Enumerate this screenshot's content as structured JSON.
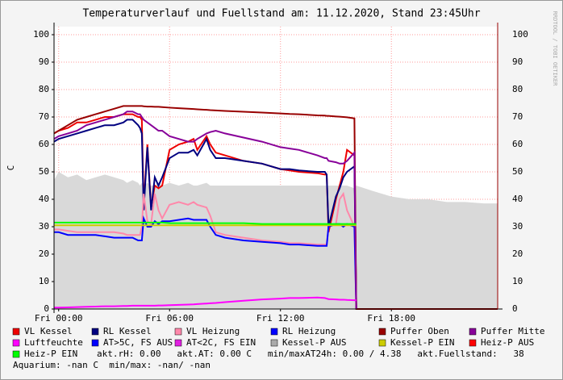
{
  "chart_data": {
    "type": "line",
    "title": "Temperaturverlauf und Fuellstand am: 11.12.2020, Stand 23:45Uhr",
    "y_label": "C",
    "watermark": "RRDTOOL / TOBI OETIKER",
    "x": [
      -0.25,
      0,
      0.5,
      1,
      1.5,
      2,
      2.5,
      3,
      3.5,
      3.7,
      4,
      4.3,
      4.4,
      4.5,
      4.6,
      4.8,
      5,
      5.2,
      5.4,
      5.6,
      6,
      6.5,
      7,
      7.3,
      7.5,
      8,
      8.2,
      8.5,
      9,
      10,
      11,
      12,
      12.5,
      13,
      14,
      14.4,
      14.5,
      14.6,
      15,
      15.2,
      15.4,
      15.6,
      16,
      16.1,
      17,
      18,
      19,
      20,
      21,
      22,
      23,
      23.75
    ],
    "xlim": [
      -0.25,
      23.75
    ],
    "xticks": [
      {
        "value": 0,
        "label": "Fri 00:00"
      },
      {
        "value": 6,
        "label": "Fri 06:00"
      },
      {
        "value": 12,
        "label": "Fri 12:00"
      },
      {
        "value": 18,
        "label": "Fri 18:00"
      }
    ],
    "ylim": [
      0,
      100
    ],
    "yticks": [
      0,
      10,
      20,
      30,
      40,
      50,
      60,
      70,
      80,
      90,
      100
    ],
    "grid": true,
    "series": [
      {
        "name": "Kessel-P AUS",
        "color": "#aaaaaa",
        "style": "area",
        "values": [
          47,
          50,
          48,
          49,
          47,
          48,
          49,
          48,
          47,
          46,
          47,
          46,
          45,
          46,
          45,
          46,
          45,
          45,
          46,
          45,
          46,
          45,
          46,
          45,
          45,
          46,
          45,
          45,
          45,
          45,
          45,
          45,
          45,
          45,
          45,
          45,
          45,
          45,
          45,
          45,
          45,
          45,
          44,
          45,
          43,
          41,
          40,
          40,
          39,
          39,
          38.5,
          38.5
        ]
      },
      {
        "name": "VL Kessel",
        "color": "#ee0000",
        "values": [
          64,
          65,
          66,
          68,
          68,
          69,
          70,
          70,
          71,
          71,
          71,
          70,
          70,
          69,
          38,
          60,
          37,
          45,
          44,
          45,
          58,
          60,
          61,
          62,
          58,
          63,
          60,
          57,
          56,
          54,
          53,
          51,
          50.5,
          50,
          49.5,
          49,
          49,
          28,
          40,
          45,
          50,
          58,
          56,
          0,
          null,
          null,
          null,
          null,
          null,
          null,
          null,
          null
        ]
      },
      {
        "name": "RL Kessel",
        "color": "#000080",
        "values": [
          61,
          62,
          63,
          64,
          65,
          66,
          67,
          67,
          68,
          69,
          69,
          67,
          66,
          64,
          36,
          59,
          36,
          48,
          45,
          48,
          55,
          57,
          57,
          58,
          56,
          62,
          58,
          55,
          55,
          54,
          53,
          51,
          51,
          50.5,
          50,
          50,
          49,
          30,
          41,
          44,
          48,
          50,
          52,
          0,
          null,
          null,
          null,
          null,
          null,
          null,
          null,
          null
        ]
      },
      {
        "name": "VL Heizung",
        "color": "#ff88aa",
        "values": [
          29,
          29,
          28.5,
          28,
          28,
          28,
          28,
          28,
          27.5,
          27,
          27,
          27,
          27,
          30,
          42,
          32,
          31,
          42,
          36,
          33,
          38,
          39,
          38,
          39,
          38,
          37,
          34,
          28,
          27,
          26,
          25,
          24.5,
          24,
          24,
          23.5,
          23.5,
          23.5,
          30,
          31,
          40,
          42,
          36,
          30,
          0,
          null,
          null,
          null,
          null,
          null,
          null,
          null,
          null
        ]
      },
      {
        "name": "RL Heizung",
        "color": "#0000ff",
        "values": [
          28,
          28,
          27,
          27,
          27,
          27,
          26.5,
          26,
          26,
          26,
          26,
          25,
          25,
          25,
          33,
          30,
          30,
          32,
          31,
          32,
          32,
          32.5,
          33,
          32.5,
          32.5,
          32.5,
          30,
          27,
          26,
          25,
          24.5,
          24,
          23.5,
          23.5,
          23,
          23,
          23,
          30,
          31,
          31,
          30,
          31,
          30,
          0,
          null,
          null,
          null,
          null,
          null,
          null,
          null,
          null
        ]
      },
      {
        "name": "Puffer Oben",
        "color": "#990000",
        "values": [
          64,
          65,
          67,
          69,
          70,
          71,
          72,
          73,
          74,
          74,
          74,
          74,
          74,
          74,
          73.9,
          73.8,
          73.8,
          73.7,
          73.7,
          73.6,
          73.4,
          73.2,
          73,
          72.9,
          72.8,
          72.6,
          72.5,
          72.4,
          72.2,
          71.9,
          71.6,
          71.3,
          71.1,
          71,
          70.6,
          70.5,
          70.4,
          70.4,
          70.2,
          70.1,
          70,
          69.9,
          69.5,
          0,
          0,
          0,
          0,
          0,
          0,
          0,
          0,
          0
        ]
      },
      {
        "name": "Puffer Mitte",
        "color": "#880099",
        "values": [
          62,
          63,
          64,
          65,
          67,
          68,
          69,
          70,
          71,
          72,
          72,
          71,
          71,
          70,
          69,
          68,
          67,
          66,
          65,
          65,
          63,
          62,
          61,
          61,
          62,
          64,
          64.5,
          65,
          64,
          62.5,
          61,
          59,
          58.5,
          58,
          56,
          55,
          55,
          54,
          53.5,
          53,
          53,
          54,
          57,
          0,
          null,
          null,
          null,
          null,
          null,
          null,
          null,
          null
        ]
      },
      {
        "name": "Luftfeuchte",
        "color": "#ff00ff",
        "values": [
          0.5,
          0.5,
          0.6,
          0.7,
          0.8,
          0.9,
          1,
          1,
          1.1,
          1.1,
          1.2,
          1.2,
          1.2,
          1.2,
          1.2,
          1.2,
          1.2,
          1.2,
          1.3,
          1.3,
          1.4,
          1.5,
          1.6,
          1.7,
          1.8,
          2,
          2.1,
          2.2,
          2.5,
          3,
          3.5,
          3.8,
          4,
          4,
          4.2,
          4,
          3.8,
          3.6,
          3.5,
          3.4,
          3.4,
          3.3,
          3.2,
          3.2,
          null,
          null,
          null,
          null,
          null,
          null,
          null,
          null
        ]
      },
      {
        "name": "AT>5C, FS AUS",
        "color": "#0000ff",
        "values": [
          null,
          null,
          null,
          null,
          null,
          null,
          null,
          null,
          null,
          null,
          null,
          null,
          null,
          null,
          null,
          null,
          null,
          null,
          null,
          null,
          null,
          null,
          null,
          null,
          null,
          null,
          null,
          null,
          null,
          null,
          null,
          null,
          null,
          null,
          null,
          null,
          null,
          null,
          null,
          null,
          null,
          null,
          null,
          null,
          null,
          null,
          null,
          null,
          null,
          null,
          null,
          null
        ]
      },
      {
        "name": "AT<2C, FS EIN",
        "color": "#e020e0",
        "values": [
          null,
          null,
          null,
          null,
          null,
          null,
          null,
          null,
          null,
          null,
          null,
          null,
          null,
          null,
          null,
          null,
          null,
          null,
          null,
          null,
          null,
          null,
          null,
          null,
          null,
          null,
          null,
          null,
          null,
          null,
          null,
          null,
          null,
          null,
          null,
          null,
          null,
          null,
          null,
          null,
          null,
          null,
          null,
          null,
          null,
          null,
          null,
          null,
          null,
          null,
          null,
          null
        ]
      },
      {
        "name": "Kessel-P EIN",
        "color": "#cccc00",
        "values": [
          30.5,
          30.5,
          30.5,
          30.5,
          30.5,
          30.5,
          30.5,
          30.5,
          30.5,
          30.5,
          30.5,
          30.5,
          30.5,
          30.5,
          30.5,
          30.5,
          30.5,
          30.5,
          30.5,
          30.5,
          30.5,
          30.5,
          30.5,
          30.5,
          30.5,
          30.5,
          30.5,
          30.5,
          30.5,
          30.5,
          30.5,
          30.5,
          30.5,
          30.5,
          30.5,
          30.5,
          30.5,
          30.5,
          30.5,
          30.5,
          30.5,
          30.5,
          30.5,
          30.5,
          null,
          null,
          null,
          null,
          null,
          null,
          null,
          null
        ]
      },
      {
        "name": "Heiz-P AUS",
        "color": "#ff0000",
        "values": [
          null,
          null,
          null,
          null,
          null,
          null,
          null,
          null,
          null,
          null,
          null,
          null,
          null,
          null,
          null,
          null,
          null,
          null,
          null,
          null,
          null,
          null,
          null,
          null,
          null,
          null,
          null,
          null,
          null,
          null,
          null,
          null,
          null,
          null,
          null,
          null,
          null,
          null,
          null,
          null,
          null,
          null,
          null,
          null,
          null,
          null,
          null,
          null,
          null,
          null,
          null,
          null
        ]
      },
      {
        "name": "Heiz-P EIN",
        "color": "#00ff00",
        "values": [
          31.5,
          31.5,
          31.5,
          31.5,
          31.5,
          31.5,
          31.5,
          31.5,
          31.5,
          31.5,
          31.5,
          31.5,
          31.5,
          31.5,
          31.5,
          31.5,
          31.5,
          31.5,
          31.5,
          31.5,
          31.3,
          31.3,
          31.3,
          31.3,
          31.3,
          31.3,
          31.3,
          31.3,
          31.3,
          31.3,
          31,
          31,
          31,
          31,
          31,
          31,
          31,
          31,
          31,
          31,
          31,
          31,
          31,
          31,
          null,
          null,
          null,
          null,
          null,
          null,
          null,
          null
        ]
      }
    ],
    "legend_order": [
      1,
      2,
      3,
      4,
      5,
      6,
      7,
      8,
      9,
      0,
      10,
      11,
      12
    ],
    "footer": [
      "akt.rH: 0.00   akt.AT: 0.00 C   min/maxAT24h: 0.00 / 4.38   akt.Fuellstand:   38",
      "Aquarium: -nan C  min/max: -nan/ -nan"
    ]
  }
}
